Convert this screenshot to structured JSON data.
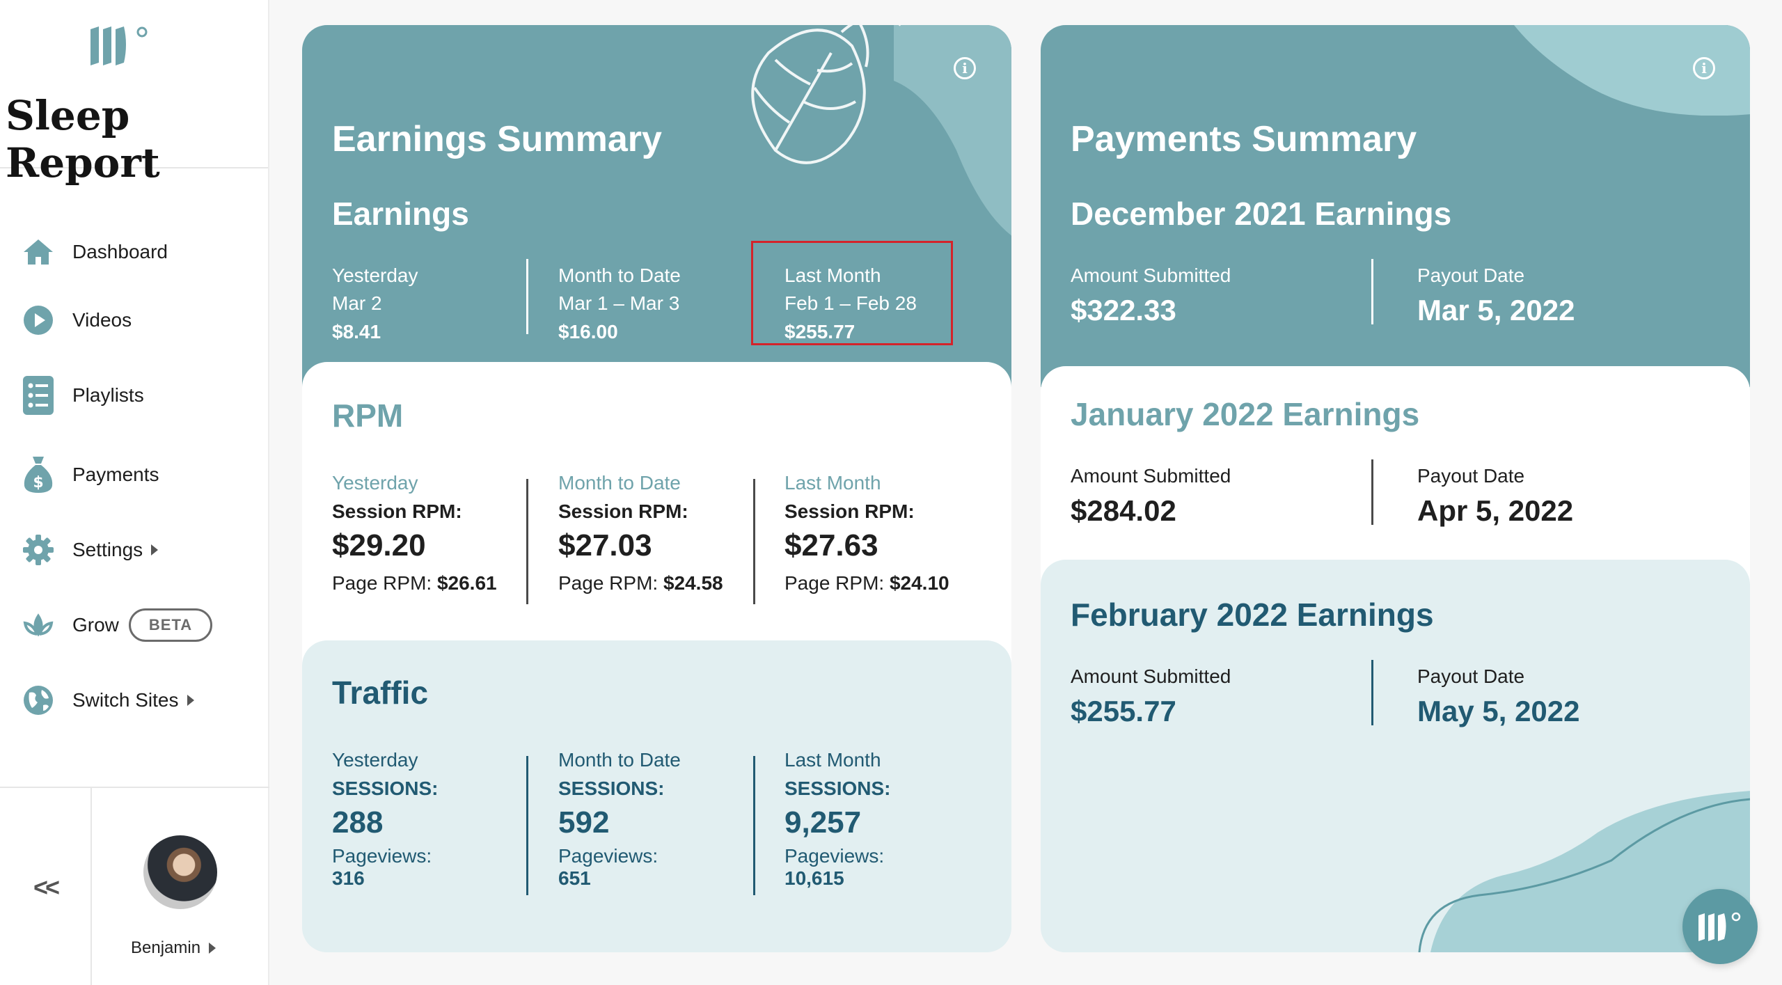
{
  "brand": {
    "title": "Sleep Report"
  },
  "nav": [
    {
      "label": "Dashboard",
      "icon": "home-icon"
    },
    {
      "label": "Videos",
      "icon": "play-circle-icon"
    },
    {
      "label": "Playlists",
      "icon": "list-icon"
    },
    {
      "label": "Payments",
      "icon": "money-bag-icon"
    },
    {
      "label": "Settings",
      "icon": "gear-icon",
      "has_submenu": true
    },
    {
      "label": "Grow",
      "icon": "lotus-icon",
      "badge": "BETA"
    },
    {
      "label": "Switch Sites",
      "icon": "globe-icon",
      "has_submenu": true
    }
  ],
  "collapse_label": "<<",
  "user": {
    "name": "Benjamin"
  },
  "earnings": {
    "title": "Earnings Summary",
    "section_title": "Earnings",
    "columns": [
      {
        "label": "Yesterday",
        "range": "Mar 2",
        "value": "$8.41"
      },
      {
        "label": "Month to Date",
        "range": "Mar 1 – Mar 3",
        "value": "$16.00"
      },
      {
        "label": "Last Month",
        "range": "Feb 1 – Feb 28",
        "value": "$255.77"
      }
    ]
  },
  "rpm": {
    "title": "RPM",
    "session_label": "Session RPM:",
    "page_label": "Page RPM:",
    "columns": [
      {
        "label": "Yesterday",
        "session": "$29.20",
        "page": "$26.61"
      },
      {
        "label": "Month to Date",
        "session": "$27.03",
        "page": "$24.58"
      },
      {
        "label": "Last Month",
        "session": "$27.63",
        "page": "$24.10"
      }
    ]
  },
  "traffic": {
    "title": "Traffic",
    "sessions_label": "SESSIONS:",
    "pageviews_label": "Pageviews:",
    "columns": [
      {
        "label": "Yesterday",
        "sessions": "288",
        "pageviews": "316"
      },
      {
        "label": "Month to Date",
        "sessions": "592",
        "pageviews": "651"
      },
      {
        "label": "Last Month",
        "sessions": "9,257",
        "pageviews": "10,615"
      }
    ]
  },
  "payments": {
    "title": "Payments Summary",
    "amount_label": "Amount Submitted",
    "payout_label": "Payout Date",
    "months": [
      {
        "title": "December 2021 Earnings",
        "amount": "$322.33",
        "payout": "Mar 5, 2022"
      },
      {
        "title": "January 2022 Earnings",
        "amount": "$284.02",
        "payout": "Apr 5, 2022"
      },
      {
        "title": "February 2022 Earnings",
        "amount": "$255.77",
        "payout": "May 5, 2022"
      }
    ]
  },
  "colors": {
    "teal": "#6fa3ab",
    "light_teal": "#e2eff1",
    "title_teal": "#6fa3ab",
    "dark_teal": "#215a72",
    "highlight": "#d4232a"
  }
}
